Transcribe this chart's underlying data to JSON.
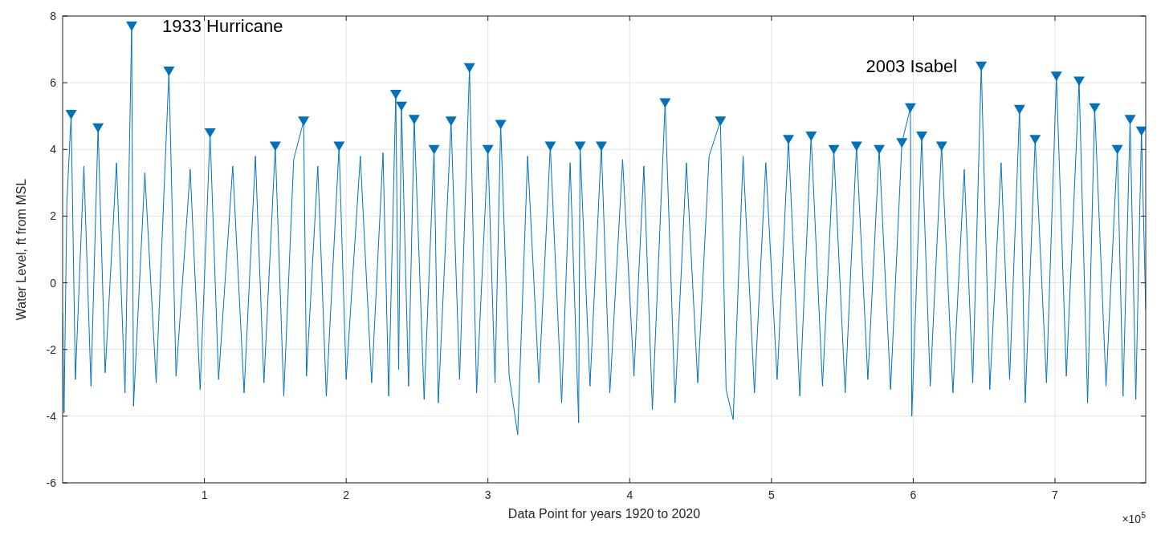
{
  "chart_data": {
    "type": "line",
    "xlabel": "Data Point for years 1920 to 2020",
    "ylabel": "Water Level, ft from MSL",
    "xlim": [
      0,
      7.64
    ],
    "xticks": [
      1,
      2,
      3,
      4,
      5,
      6,
      7
    ],
    "ylim": [
      -6,
      8
    ],
    "yticks": [
      -6,
      -4,
      -2,
      0,
      2,
      4,
      6,
      8
    ],
    "grid": true,
    "annotations": [
      {
        "text": "1933 Hurricane",
        "x": 0.487,
        "y": 7.7
      },
      {
        "text": "2003 Isabel",
        "x": 6.48,
        "y": 6.5
      },
      "×10$^{5}$"
    ],
    "series": [
      {
        "color": "#0072bd",
        "marker": "none",
        "x": [
          0,
          0.01,
          0.03,
          0.06,
          0.09,
          0.15,
          0.2,
          0.25,
          0.3,
          0.38,
          0.44,
          0.487,
          0.5,
          0.58,
          0.66,
          0.75,
          0.8,
          0.9,
          0.97,
          1.04,
          1.1,
          1.2,
          1.28,
          1.36,
          1.42,
          1.5,
          1.56,
          1.63,
          1.7,
          1.72,
          1.8,
          1.86,
          1.95,
          2.0,
          2.1,
          2.18,
          2.26,
          2.3,
          2.35,
          2.37,
          2.39,
          2.44,
          2.48,
          2.55,
          2.62,
          2.65,
          2.74,
          2.8,
          2.87,
          2.92,
          3.0,
          3.05,
          3.09,
          3.15,
          3.21,
          3.28,
          3.36,
          3.44,
          3.52,
          3.58,
          3.64,
          3.65,
          3.72,
          3.8,
          3.86,
          3.95,
          4.03,
          4.1,
          4.16,
          4.25,
          4.32,
          4.4,
          4.48,
          4.56,
          4.64,
          4.68,
          4.73,
          4.8,
          4.88,
          4.96,
          5.04,
          5.12,
          5.2,
          5.28,
          5.36,
          5.44,
          5.52,
          5.6,
          5.68,
          5.76,
          5.84,
          5.92,
          5.98,
          5.99,
          6.06,
          6.12,
          6.2,
          6.28,
          6.36,
          6.42,
          6.48,
          6.54,
          6.62,
          6.68,
          6.75,
          6.79,
          6.86,
          6.94,
          7.01,
          7.08,
          7.17,
          7.23,
          7.28,
          7.36,
          7.44,
          7.48,
          7.53,
          7.57,
          7.61,
          7.64
        ],
        "values": [
          -0.9,
          -3.9,
          2.4,
          5.05,
          -2.9,
          3.5,
          -3.1,
          4.65,
          -2.7,
          3.6,
          -3.3,
          7.7,
          -3.7,
          3.3,
          -3.0,
          6.35,
          -2.8,
          3.4,
          -3.2,
          4.5,
          -2.9,
          3.5,
          -3.3,
          3.8,
          -3.0,
          4.1,
          -3.4,
          3.7,
          4.85,
          -2.8,
          3.5,
          -3.4,
          4.1,
          -2.9,
          3.8,
          -3.0,
          3.9,
          -3.4,
          5.65,
          -2.6,
          5.3,
          -3.1,
          4.9,
          -3.5,
          4.0,
          -3.6,
          4.85,
          -2.9,
          6.45,
          -3.3,
          4.0,
          -3.0,
          4.75,
          -2.8,
          -4.55,
          3.8,
          -3.0,
          4.1,
          -3.6,
          3.6,
          -4.2,
          4.1,
          -3.1,
          4.1,
          -3.3,
          3.7,
          -2.8,
          3.5,
          -3.8,
          5.4,
          -3.6,
          3.6,
          -3.0,
          3.8,
          4.85,
          -3.2,
          -4.1,
          3.8,
          -3.3,
          3.6,
          -2.9,
          4.3,
          -3.4,
          4.4,
          -3.1,
          4.0,
          -3.3,
          4.1,
          -2.9,
          4.0,
          -3.2,
          4.2,
          5.25,
          -4.0,
          4.4,
          -3.1,
          4.1,
          -3.3,
          3.4,
          -3.0,
          6.5,
          -3.2,
          3.6,
          -2.9,
          5.2,
          -3.6,
          4.3,
          -3.0,
          6.2,
          -2.8,
          6.05,
          -3.6,
          5.25,
          -3.1,
          4.0,
          -3.4,
          4.9,
          -3.5,
          4.55,
          -0.8
        ]
      },
      {
        "type": "scatter",
        "color": "#0072bd",
        "marker": "triangle",
        "x": [
          0.06,
          0.25,
          0.487,
          0.75,
          1.04,
          1.5,
          1.7,
          1.95,
          2.35,
          2.39,
          2.48,
          2.62,
          2.74,
          2.87,
          3.0,
          3.09,
          3.44,
          3.65,
          3.8,
          4.25,
          4.64,
          5.12,
          5.28,
          5.44,
          5.6,
          5.76,
          5.92,
          5.98,
          6.06,
          6.2,
          6.48,
          6.75,
          6.86,
          7.01,
          7.17,
          7.28,
          7.44,
          7.53,
          7.61
        ],
        "values": [
          5.05,
          4.65,
          7.7,
          6.35,
          4.5,
          4.1,
          4.85,
          4.1,
          5.65,
          5.3,
          4.9,
          4.0,
          4.85,
          6.45,
          4.0,
          4.75,
          4.1,
          4.1,
          4.1,
          5.4,
          4.85,
          4.3,
          4.4,
          4.0,
          4.1,
          4.0,
          4.2,
          5.25,
          4.4,
          4.1,
          6.5,
          5.2,
          4.3,
          6.2,
          6.05,
          5.25,
          4.0,
          4.9,
          4.55
        ]
      }
    ]
  }
}
